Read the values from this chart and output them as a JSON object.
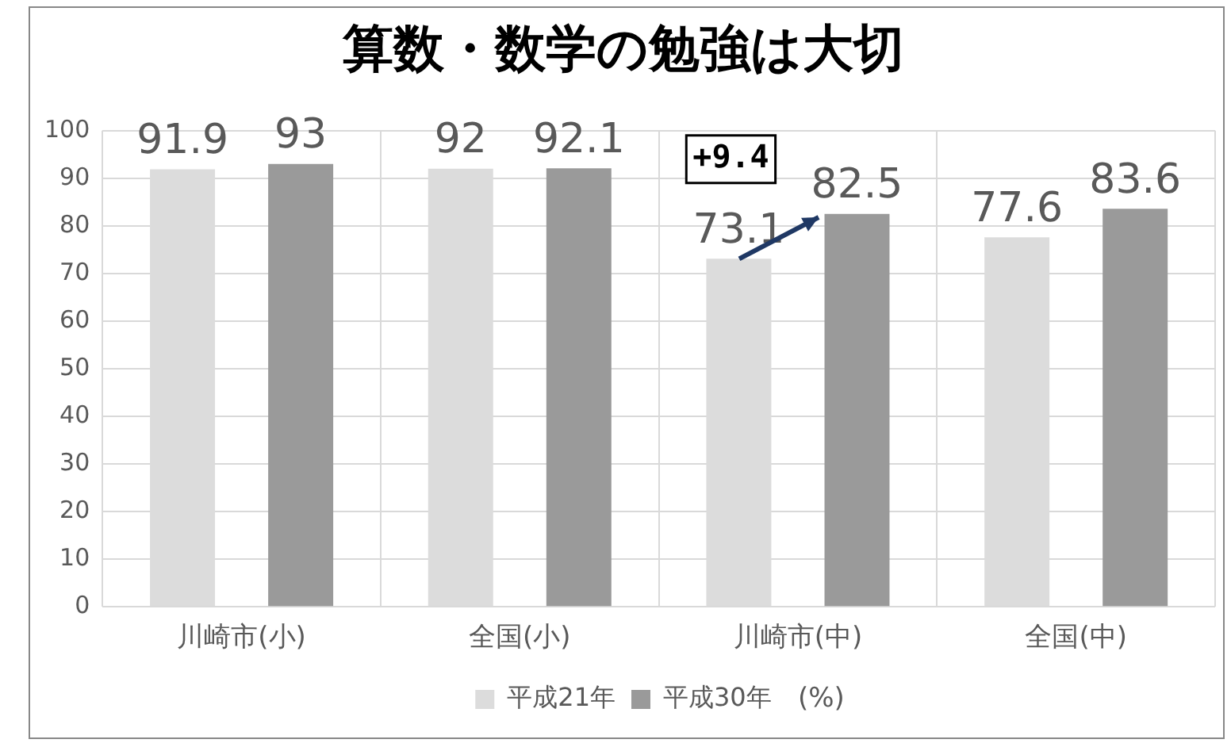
{
  "chart_data": {
    "type": "bar",
    "title": "算数・数学の勉強は大切",
    "categories": [
      "川崎市(小)",
      "全国(小)",
      "川崎市(中)",
      "全国(中)"
    ],
    "series": [
      {
        "name": "平成21年",
        "color": "#dcdcdc",
        "values": [
          91.9,
          92,
          73.1,
          77.6
        ]
      },
      {
        "name": "平成30年",
        "color": "#9a9a9a",
        "values": [
          93,
          92.1,
          82.5,
          83.6
        ]
      }
    ],
    "ylim": [
      0,
      100
    ],
    "yticks": [
      0,
      10,
      20,
      30,
      40,
      50,
      60,
      70,
      80,
      90,
      100
    ],
    "grid": true,
    "legend": "bottom",
    "data_labels": true,
    "annotations": [
      "+9.4",
      "(%)"
    ]
  }
}
